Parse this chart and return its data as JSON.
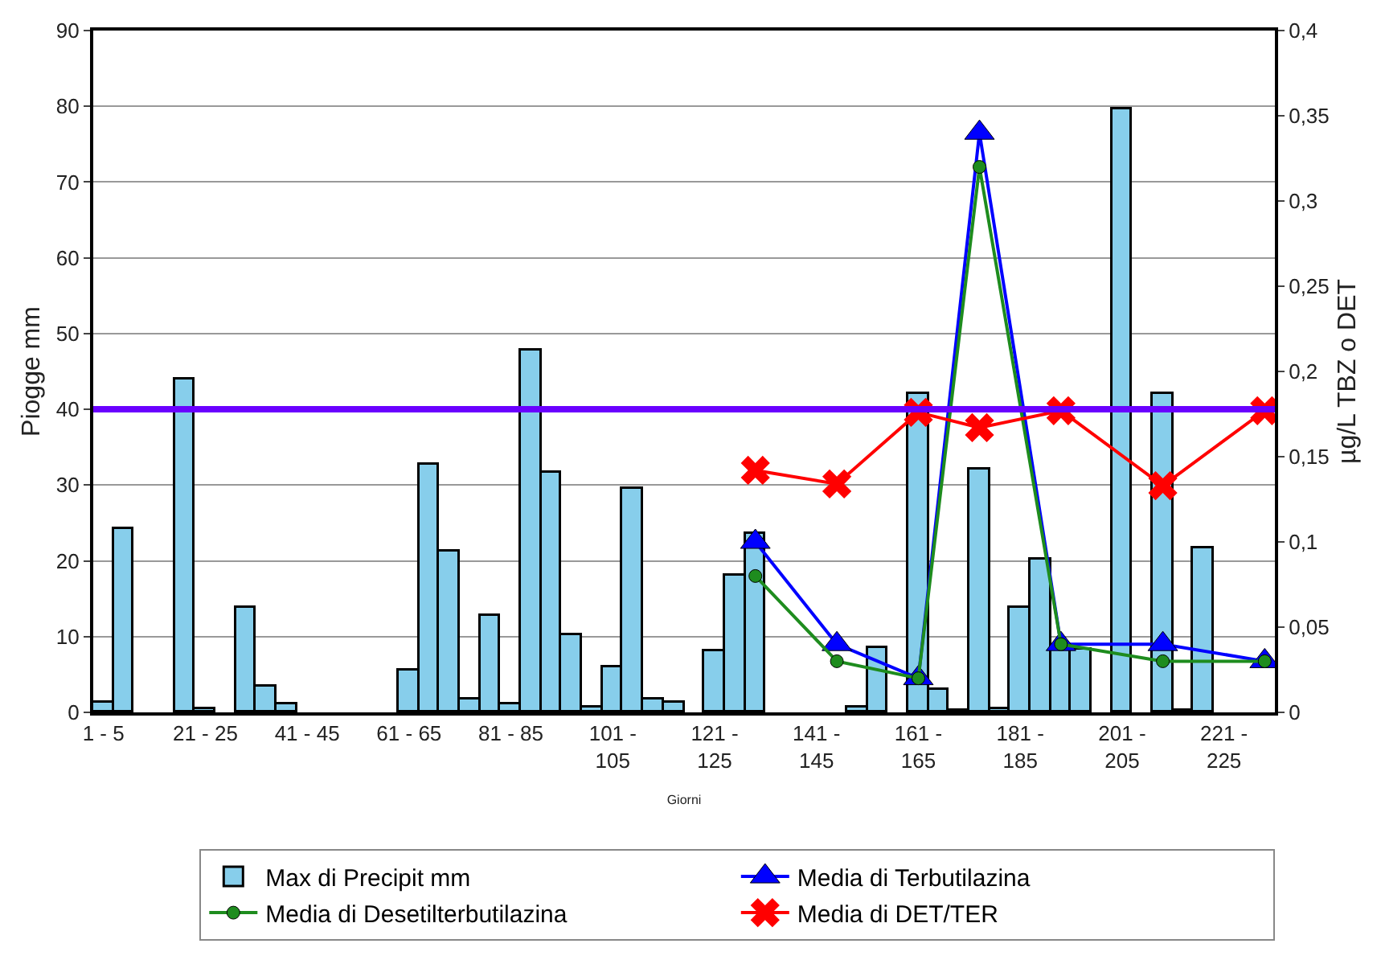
{
  "chart_data": {
    "type": "bar",
    "xlabel": "Giorni",
    "ylabel": "Piogge mm",
    "y2label": "µg/L TBZ o DET",
    "categories": [
      "1 - 5",
      null,
      null,
      null,
      null,
      "21 - 25",
      null,
      null,
      null,
      null,
      "41 - 45",
      null,
      null,
      null,
      null,
      "61 - 65",
      null,
      null,
      null,
      null,
      "81 - 85",
      null,
      null,
      null,
      null,
      "101 - 105",
      null,
      null,
      null,
      null,
      "121 - 125",
      null,
      null,
      null,
      null,
      "141 - 145",
      null,
      null,
      null,
      null,
      "161 - 165",
      null,
      null,
      null,
      null,
      "181 - 185",
      null,
      null,
      null,
      null,
      "201 - 205",
      null,
      null,
      null,
      null,
      "221 - 225",
      null,
      null
    ],
    "series": [
      {
        "name": "Max di Precipit mm",
        "color": "#87ceeb",
        "values": [
          1.3,
          24.3,
          null,
          null,
          44,
          0.4,
          null,
          13.8,
          3.5,
          1.0,
          null,
          null,
          null,
          null,
          null,
          5.5,
          32.7,
          21.3,
          1.7,
          12.7,
          1.0,
          47.7,
          31.7,
          10.2,
          0.7,
          5.9,
          29.4,
          1.8,
          1.3,
          null,
          8.0,
          18.0,
          23.6,
          null,
          null,
          null,
          null,
          0.6,
          8.4,
          null,
          42,
          2.9,
          0.2,
          32.1,
          0.4,
          13.9,
          20.1,
          8.4,
          8.2,
          null,
          79.7,
          null,
          42,
          0.2,
          21.7,
          null,
          null,
          null
        ]
      },
      {
        "name": "Media di Terbutilazina",
        "type": "line",
        "axis": "y2",
        "color": "#0000ff",
        "marker": "triangle",
        "values": [
          null,
          null,
          null,
          null,
          null,
          null,
          null,
          null,
          null,
          null,
          null,
          null,
          null,
          null,
          null,
          null,
          null,
          null,
          null,
          null,
          null,
          null,
          null,
          null,
          null,
          null,
          null,
          null,
          null,
          null,
          null,
          null,
          0.1,
          null,
          null,
          null,
          0.04,
          null,
          null,
          null,
          0.02,
          null,
          null,
          0.34,
          null,
          null,
          null,
          0.04,
          null,
          null,
          null,
          null,
          0.04,
          null,
          null,
          null,
          null,
          0.03
        ]
      },
      {
        "name": "Media di Desetilterbutilazina",
        "type": "line",
        "axis": "y2",
        "color": "#1e8c1e",
        "marker": "circle",
        "values": [
          null,
          null,
          null,
          null,
          null,
          null,
          null,
          null,
          null,
          null,
          null,
          null,
          null,
          null,
          null,
          null,
          null,
          null,
          null,
          null,
          null,
          null,
          null,
          null,
          null,
          null,
          null,
          null,
          null,
          null,
          null,
          null,
          0.08,
          null,
          null,
          null,
          0.03,
          null,
          null,
          null,
          0.02,
          null,
          null,
          0.32,
          null,
          null,
          null,
          0.04,
          null,
          null,
          null,
          null,
          0.03,
          null,
          null,
          null,
          null,
          0.03
        ]
      },
      {
        "name": "Media di DET/TER",
        "type": "line",
        "axis": "y2",
        "color": "#ff0000",
        "marker": "cross",
        "values": [
          null,
          null,
          null,
          null,
          null,
          null,
          null,
          null,
          null,
          null,
          null,
          null,
          null,
          null,
          null,
          null,
          null,
          null,
          null,
          null,
          null,
          null,
          null,
          null,
          null,
          null,
          null,
          null,
          null,
          null,
          null,
          null,
          0.142,
          null,
          null,
          null,
          0.134,
          null,
          null,
          null,
          0.176,
          null,
          null,
          0.167,
          null,
          null,
          null,
          0.177,
          null,
          null,
          null,
          null,
          0.133,
          null,
          null,
          null,
          null,
          0.177
        ]
      }
    ],
    "ylim": [
      0,
      90
    ],
    "yticks": [
      0,
      10,
      20,
      30,
      40,
      50,
      60,
      70,
      80,
      90
    ],
    "y2lim": [
      0,
      0.4
    ],
    "y2ticks": [
      {
        "value": 0,
        "label": "0"
      },
      {
        "value": 0.05,
        "label": "0,05"
      },
      {
        "value": 0.1,
        "label": "0,1"
      },
      {
        "value": 0.15,
        "label": "0,15"
      },
      {
        "value": 0.2,
        "label": "0,2"
      },
      {
        "value": 0.25,
        "label": "0,25"
      },
      {
        "value": 0.3,
        "label": "0,3"
      },
      {
        "value": 0.35,
        "label": "0,35"
      },
      {
        "value": 0.4,
        "label": "0,4"
      }
    ],
    "ref_lines": [
      {
        "axis": "y",
        "value": 40,
        "color": "#6a00ff"
      }
    ],
    "grid": "y",
    "legend": "bottom"
  }
}
